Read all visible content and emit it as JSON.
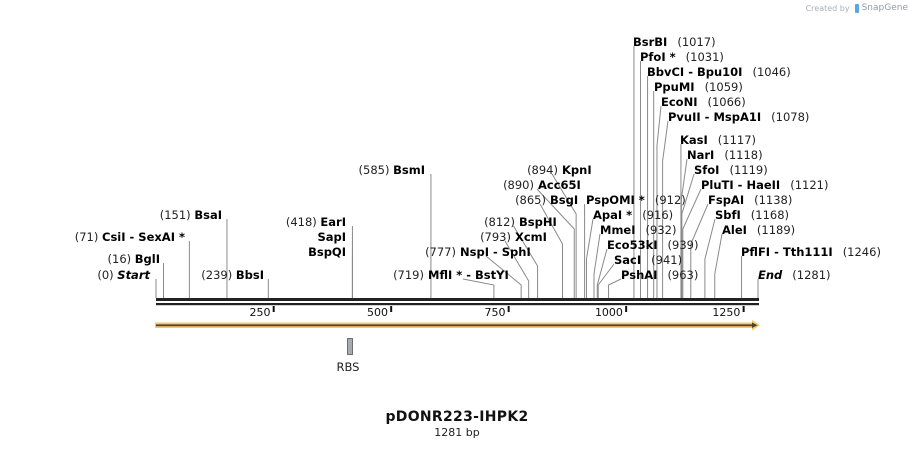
{
  "credit": {
    "prefix": "Created by",
    "brand": "SnapGene",
    "icon": "snapgene-logo-icon"
  },
  "plasmid": {
    "name": "pDONR223-IHPK2",
    "length_label": "1281 bp",
    "length": 1281
  },
  "axis": {
    "ticks": [
      {
        "value": 250,
        "label": "250"
      },
      {
        "value": 500,
        "label": "500"
      },
      {
        "value": 750,
        "label": "750"
      },
      {
        "value": 1000,
        "label": "1000"
      },
      {
        "value": 1250,
        "label": "1250"
      }
    ]
  },
  "features": [
    {
      "name": "RBS",
      "start": 410,
      "end": 420,
      "type": "rbs",
      "color": "#9aa0a6"
    },
    {
      "name": "ORF",
      "start": 0,
      "end": 1281,
      "type": "orf-arrow",
      "color": "#f7c66b"
    }
  ],
  "sites": [
    {
      "name": "Start",
      "pos": "(0)",
      "bp": 0,
      "side": "left",
      "row": 275,
      "labelX": 150,
      "term": true
    },
    {
      "name": "BglI",
      "pos": "(16)",
      "bp": 16,
      "side": "left",
      "row": 259,
      "labelX": 160
    },
    {
      "name": "CsiI  - SexAI *",
      "pos": "(71)",
      "bp": 71,
      "side": "left",
      "row": 237,
      "labelX": 185
    },
    {
      "name": "BsaI",
      "pos": "(151)",
      "bp": 151,
      "side": "left",
      "row": 215,
      "labelX": 222
    },
    {
      "name": "BbsI",
      "pos": "(239)",
      "bp": 239,
      "side": "left",
      "row": 275,
      "labelX": 264
    },
    {
      "name": "EarI",
      "pos": "(418)",
      "bp": 418,
      "side": "left",
      "row": 222,
      "labelX": 346
    },
    {
      "name": "SapI",
      "pos": "",
      "bp": 418,
      "side": "left",
      "row": 237,
      "labelX": 346
    },
    {
      "name": "BspQI",
      "pos": "",
      "bp": 418,
      "side": "left",
      "row": 252,
      "labelX": 346
    },
    {
      "name": "BsmI",
      "pos": "(585)",
      "bp": 585,
      "side": "left",
      "row": 170,
      "labelX": 425
    },
    {
      "name": "MflI * - BstYI",
      "pos": "(719)",
      "bp": 719,
      "side": "split",
      "row": 275,
      "labelX": 400
    },
    {
      "name": "NspI  - SphI",
      "pos": "(777)",
      "bp": 777,
      "side": "split",
      "row": 252,
      "labelX": 432
    },
    {
      "name": "XcmI",
      "pos": "(793)",
      "bp": 793,
      "side": "split",
      "row": 237,
      "labelX": 487
    },
    {
      "name": "BspHI",
      "pos": "(812)",
      "bp": 812,
      "side": "split",
      "row": 222,
      "labelX": 491
    },
    {
      "name": "BsgI",
      "pos": "(865)",
      "bp": 865,
      "side": "split",
      "row": 200,
      "labelX": 522
    },
    {
      "name": "Acc65I",
      "pos": "(890)",
      "bp": 890,
      "side": "split",
      "row": 185,
      "labelX": 510
    },
    {
      "name": "KpnI",
      "pos": "(894)",
      "bp": 894,
      "side": "split",
      "row": 170,
      "labelX": 534
    },
    {
      "name": "PspOMI *",
      "pos": "(912)",
      "bp": 912,
      "side": "right",
      "row": 200,
      "labelX": 586
    },
    {
      "name": "ApaI *",
      "pos": "(916)",
      "bp": 916,
      "side": "right",
      "row": 215,
      "labelX": 593
    },
    {
      "name": "MmeI",
      "pos": "(932)",
      "bp": 932,
      "side": "right",
      "row": 230,
      "labelX": 600
    },
    {
      "name": "Eco53kI",
      "pos": "(939)",
      "bp": 939,
      "side": "right",
      "row": 245,
      "labelX": 607
    },
    {
      "name": "SacI",
      "pos": "(941)",
      "bp": 941,
      "side": "right",
      "row": 260,
      "labelX": 614
    },
    {
      "name": "PshAI",
      "pos": "(963)",
      "bp": 963,
      "side": "right",
      "row": 275,
      "labelX": 621
    },
    {
      "name": "BsrBI",
      "pos": "(1017)",
      "bp": 1017,
      "side": "right",
      "row": 42,
      "labelX": 633
    },
    {
      "name": "PfoI *",
      "pos": "(1031)",
      "bp": 1031,
      "side": "right",
      "row": 57,
      "labelX": 640
    },
    {
      "name": "BbvCI  - Bpu10I",
      "pos": "(1046)",
      "bp": 1046,
      "side": "right",
      "row": 72,
      "labelX": 647
    },
    {
      "name": "PpuMI",
      "pos": "(1059)",
      "bp": 1059,
      "side": "right",
      "row": 87,
      "labelX": 654
    },
    {
      "name": "EcoNI",
      "pos": "(1066)",
      "bp": 1066,
      "side": "right",
      "row": 102,
      "labelX": 661
    },
    {
      "name": "PvuII  - MspA1I",
      "pos": "(1078)",
      "bp": 1078,
      "side": "right",
      "row": 117,
      "labelX": 668
    },
    {
      "name": "KasI",
      "pos": "(1117)",
      "bp": 1117,
      "side": "right",
      "row": 140,
      "labelX": 680
    },
    {
      "name": "NarI",
      "pos": "(1118)",
      "bp": 1118,
      "side": "right",
      "row": 155,
      "labelX": 687
    },
    {
      "name": "SfoI",
      "pos": "(1119)",
      "bp": 1119,
      "side": "right",
      "row": 170,
      "labelX": 694
    },
    {
      "name": "PluTI  - HaeII",
      "pos": "(1121)",
      "bp": 1121,
      "side": "right",
      "row": 185,
      "labelX": 701
    },
    {
      "name": "FspAI",
      "pos": "(1138)",
      "bp": 1138,
      "side": "right",
      "row": 200,
      "labelX": 708
    },
    {
      "name": "SbfI",
      "pos": "(1168)",
      "bp": 1168,
      "side": "right",
      "row": 215,
      "labelX": 715
    },
    {
      "name": "AleI",
      "pos": "(1189)",
      "bp": 1189,
      "side": "right",
      "row": 230,
      "labelX": 722
    },
    {
      "name": "PflFI  - Tth111I",
      "pos": "(1246)",
      "bp": 1246,
      "side": "right",
      "row": 252,
      "labelX": 741
    },
    {
      "name": "End",
      "pos": "(1281)",
      "bp": 1281,
      "side": "right",
      "row": 275,
      "labelX": 758,
      "term": true
    }
  ]
}
